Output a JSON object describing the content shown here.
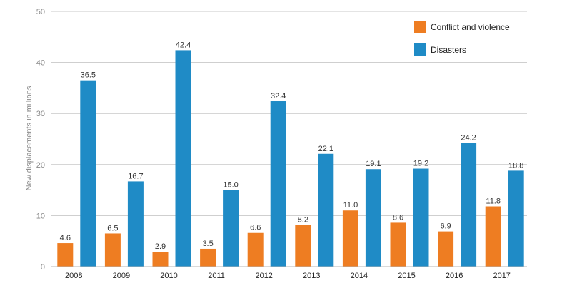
{
  "chart_data": {
    "type": "bar",
    "title": "",
    "xlabel": "",
    "ylabel": "New displacements in millions",
    "ylim": [
      0,
      50
    ],
    "yticks": [
      0,
      10,
      20,
      30,
      40,
      50
    ],
    "grid": true,
    "legend_position": "top-right",
    "categories": [
      "2008",
      "2009",
      "2010",
      "2011",
      "2012",
      "2013",
      "2014",
      "2015",
      "2016",
      "2017"
    ],
    "series": [
      {
        "name": "Conflict and violence",
        "color": "#ee7d22",
        "values": [
          4.6,
          6.5,
          2.9,
          3.5,
          6.6,
          8.2,
          11.0,
          8.6,
          6.9,
          11.8
        ],
        "labels": [
          "4.6",
          "6.5",
          "2.9",
          "3.5",
          "6.6",
          "8.2",
          "11.0",
          "8.6",
          "6.9",
          "11.8"
        ]
      },
      {
        "name": "Disasters",
        "color": "#1f8bc6",
        "values": [
          36.5,
          16.7,
          42.4,
          15.0,
          32.4,
          22.1,
          19.1,
          19.2,
          24.2,
          18.8
        ],
        "labels": [
          "36.5",
          "16.7",
          "42.4",
          "15.0",
          "32.4",
          "22.1",
          "19.1",
          "19.2",
          "24.2",
          "18.8"
        ]
      }
    ]
  }
}
